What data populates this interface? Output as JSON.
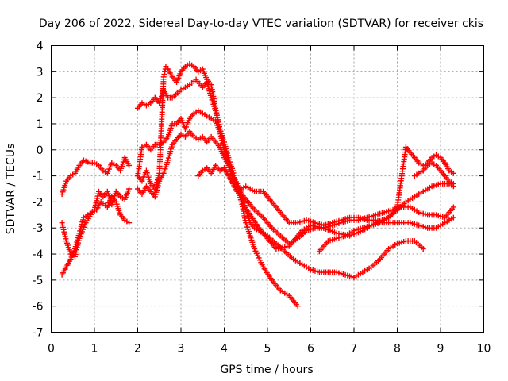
{
  "chart_data": {
    "type": "scatter",
    "title": "Day 206 of 2022, Sidereal Day-to-day VTEC variation (SDTVAR) for receiver ckis",
    "xlabel": "GPS time / hours",
    "ylabel": "SDTVAR / TECUs",
    "xlim": [
      0,
      10
    ],
    "ylim": [
      -7,
      4
    ],
    "x_ticks": [
      "0",
      "1",
      "2",
      "3",
      "4",
      "5",
      "6",
      "7",
      "8",
      "9",
      "10"
    ],
    "y_ticks": [
      "-7",
      "-6",
      "-5",
      "-4",
      "-3",
      "-2",
      "-1",
      "0",
      "1",
      "2",
      "3",
      "4"
    ],
    "grid": true,
    "marker": "+",
    "color": "#ff0000",
    "series": [
      {
        "name": "s1",
        "x": [
          0.25,
          0.35,
          0.45,
          0.55,
          0.65,
          0.75,
          0.9,
          1.0,
          1.1,
          1.2,
          1.3,
          1.4,
          1.5,
          1.6,
          1.7,
          1.8
        ],
        "y": [
          -1.7,
          -1.2,
          -1.0,
          -0.9,
          -0.6,
          -0.4,
          -0.5,
          -0.5,
          -0.6,
          -0.8,
          -0.9,
          -0.5,
          -0.6,
          -0.8,
          -0.3,
          -0.6
        ]
      },
      {
        "name": "s2",
        "x": [
          0.25,
          0.35,
          0.45,
          0.55,
          0.65,
          0.8,
          0.95,
          1.05,
          1.15,
          1.3,
          1.4,
          1.5,
          1.6,
          1.7,
          1.8
        ],
        "y": [
          -2.8,
          -3.5,
          -4.0,
          -4.1,
          -3.4,
          -2.8,
          -2.4,
          -2.3,
          -2.0,
          -2.2,
          -1.8,
          -2.0,
          -2.5,
          -2.7,
          -2.8
        ]
      },
      {
        "name": "s3",
        "x": [
          0.25,
          0.35,
          0.45,
          0.55,
          0.65,
          0.75,
          0.85,
          1.0,
          1.1,
          1.2,
          1.3,
          1.4,
          1.5,
          1.6,
          1.7,
          1.8
        ],
        "y": [
          -4.8,
          -4.5,
          -4.2,
          -3.8,
          -3.2,
          -2.6,
          -2.5,
          -2.3,
          -1.6,
          -1.8,
          -1.6,
          -2.1,
          -1.6,
          -1.8,
          -1.9,
          -1.5
        ]
      },
      {
        "name": "s4",
        "x": [
          2.0,
          2.1,
          2.2,
          2.3,
          2.4,
          2.5,
          2.6,
          2.7,
          2.8,
          3.0,
          3.2,
          3.35,
          3.5,
          3.6,
          3.7,
          3.8,
          3.9,
          4.0,
          4.1,
          4.2,
          4.3,
          4.4,
          4.6,
          4.8,
          5.0,
          5.2,
          5.5,
          5.8,
          6.0,
          6.3,
          6.6,
          6.9,
          7.2,
          7.5,
          7.8,
          8.0,
          8.2,
          8.4,
          8.6,
          8.8,
          9.0,
          9.2,
          9.3
        ],
        "y": [
          1.6,
          1.8,
          1.7,
          1.8,
          2.0,
          1.8,
          2.3,
          2.0,
          2.0,
          2.3,
          2.5,
          2.7,
          2.4,
          2.6,
          2.0,
          1.5,
          0.8,
          0.3,
          -0.3,
          -0.8,
          -1.5,
          -2.0,
          -2.5,
          -3.0,
          -3.4,
          -3.8,
          -3.7,
          -3.1,
          -2.9,
          -3.0,
          -3.2,
          -3.3,
          -3.1,
          -2.8,
          -2.6,
          -2.3,
          -2.0,
          -1.8,
          -1.6,
          -1.4,
          -1.3,
          -1.3,
          -1.4
        ]
      },
      {
        "name": "s5",
        "x": [
          2.0,
          2.1,
          2.2,
          2.3,
          2.4,
          2.5,
          2.6,
          2.65,
          2.7,
          2.8,
          2.9,
          3.0,
          3.1,
          3.2,
          3.3,
          3.4,
          3.5,
          3.6,
          3.7,
          3.8,
          3.9,
          4.0,
          4.1,
          4.2,
          4.3,
          4.4,
          4.5,
          4.7,
          4.9,
          5.1,
          5.3,
          5.5,
          5.7
        ],
        "y": [
          -1.0,
          -1.2,
          -0.8,
          -1.3,
          -1.5,
          -0.9,
          2.8,
          3.2,
          3.1,
          2.8,
          2.6,
          3.0,
          3.2,
          3.3,
          3.2,
          3.0,
          3.1,
          2.7,
          2.5,
          1.6,
          0.8,
          0.0,
          -0.5,
          -1.0,
          -1.5,
          -2.0,
          -2.8,
          -3.8,
          -4.5,
          -5.0,
          -5.4,
          -5.6,
          -6.0
        ]
      },
      {
        "name": "s6",
        "x": [
          2.0,
          2.1,
          2.2,
          2.3,
          2.4,
          2.5,
          2.6,
          2.7,
          2.8,
          2.9,
          3.0,
          3.1,
          3.2,
          3.3,
          3.4,
          3.5,
          3.6,
          3.7,
          3.8,
          3.9,
          4.0,
          4.1,
          4.2,
          4.3,
          4.4,
          4.5,
          4.6,
          4.7,
          4.8,
          5.0,
          5.2,
          5.4,
          5.6,
          5.8,
          6.0,
          6.2,
          6.4,
          6.6,
          6.8,
          7.0,
          7.2,
          7.4,
          7.6,
          7.8,
          8.0,
          8.2,
          8.4,
          8.6
        ],
        "y": [
          -1.5,
          -1.7,
          -1.4,
          -1.6,
          -1.8,
          -1.2,
          -0.9,
          -0.4,
          0.2,
          0.4,
          0.6,
          0.5,
          0.7,
          0.5,
          0.4,
          0.5,
          0.3,
          0.5,
          0.3,
          0.1,
          -0.3,
          -0.6,
          -1.0,
          -1.3,
          -1.7,
          -2.3,
          -2.8,
          -3.0,
          -3.1,
          -3.3,
          -3.6,
          -3.9,
          -4.2,
          -4.4,
          -4.6,
          -4.7,
          -4.7,
          -4.7,
          -4.8,
          -4.9,
          -4.7,
          -4.5,
          -4.2,
          -3.8,
          -3.6,
          -3.5,
          -3.5,
          -3.8
        ]
      },
      {
        "name": "s7",
        "x": [
          2.0,
          2.1,
          2.2,
          2.3,
          2.4,
          2.5,
          2.6,
          2.7,
          2.8,
          2.9,
          3.0,
          3.1,
          3.2,
          3.3,
          3.4,
          3.5,
          3.6,
          3.7,
          3.8,
          3.9,
          4.0,
          4.1,
          4.2,
          4.3,
          4.5,
          4.7,
          4.9,
          5.1,
          5.3,
          5.5,
          5.7,
          5.9,
          6.1,
          6.3,
          6.5,
          6.7,
          6.9,
          7.1,
          7.3,
          7.5,
          7.7,
          7.9,
          8.1,
          8.3,
          8.5,
          8.7,
          8.9,
          9.1,
          9.3
        ],
        "y": [
          -1.0,
          0.1,
          0.2,
          0.0,
          0.2,
          0.2,
          0.3,
          0.5,
          1.0,
          1.0,
          1.2,
          0.8,
          1.2,
          1.4,
          1.5,
          1.4,
          1.3,
          1.2,
          1.1,
          0.7,
          0.0,
          -0.6,
          -1.1,
          -1.5,
          -1.9,
          -2.3,
          -2.6,
          -3.0,
          -3.3,
          -3.6,
          -3.4,
          -3.1,
          -3.0,
          -3.0,
          -2.9,
          -2.8,
          -2.7,
          -2.7,
          -2.6,
          -2.5,
          -2.4,
          -2.3,
          -2.2,
          -2.2,
          -2.4,
          -2.5,
          -2.5,
          -2.6,
          -2.2
        ]
      },
      {
        "name": "s8",
        "x": [
          3.4,
          3.5,
          3.6,
          3.7,
          3.8,
          3.9,
          4.0,
          4.1,
          4.2,
          4.3,
          4.5,
          4.7,
          4.9,
          5.1,
          5.3,
          5.5,
          5.7,
          5.9,
          6.1,
          6.3,
          6.5,
          6.7,
          6.9,
          7.1,
          7.3,
          7.5,
          7.7,
          7.9,
          8.1,
          8.3,
          8.5,
          8.7,
          8.9,
          9.1,
          9.3
        ],
        "y": [
          -1.0,
          -0.8,
          -0.7,
          -0.9,
          -0.6,
          -0.8,
          -0.7,
          -1.0,
          -1.3,
          -1.6,
          -1.4,
          -1.6,
          -1.6,
          -2.0,
          -2.4,
          -2.8,
          -2.8,
          -2.7,
          -2.8,
          -2.9,
          -2.8,
          -2.7,
          -2.6,
          -2.6,
          -2.7,
          -2.7,
          -2.8,
          -2.8,
          -2.8,
          -2.8,
          -2.9,
          -3.0,
          -3.0,
          -2.8,
          -2.6
        ]
      },
      {
        "name": "s9",
        "x": [
          6.2,
          6.4,
          6.6,
          6.8,
          7.0,
          7.2,
          7.4,
          7.6,
          7.8,
          8.0,
          8.2,
          8.3,
          8.4,
          8.5,
          8.6,
          8.7,
          8.8,
          8.9,
          9.0,
          9.1,
          9.2,
          9.3
        ],
        "y": [
          -3.9,
          -3.5,
          -3.4,
          -3.3,
          -3.1,
          -3.0,
          -2.9,
          -2.8,
          -2.6,
          -2.2,
          0.1,
          -0.1,
          -0.3,
          -0.5,
          -0.6,
          -0.5,
          -0.3,
          -0.2,
          -0.3,
          -0.5,
          -0.8,
          -0.9
        ]
      },
      {
        "name": "s10",
        "x": [
          8.4,
          8.5,
          8.6,
          8.7,
          8.8,
          8.9,
          9.0,
          9.1,
          9.2,
          9.3
        ],
        "y": [
          -1.0,
          -0.9,
          -0.8,
          -0.6,
          -0.5,
          -0.6,
          -0.8,
          -1.0,
          -1.2,
          -1.3
        ]
      }
    ]
  }
}
